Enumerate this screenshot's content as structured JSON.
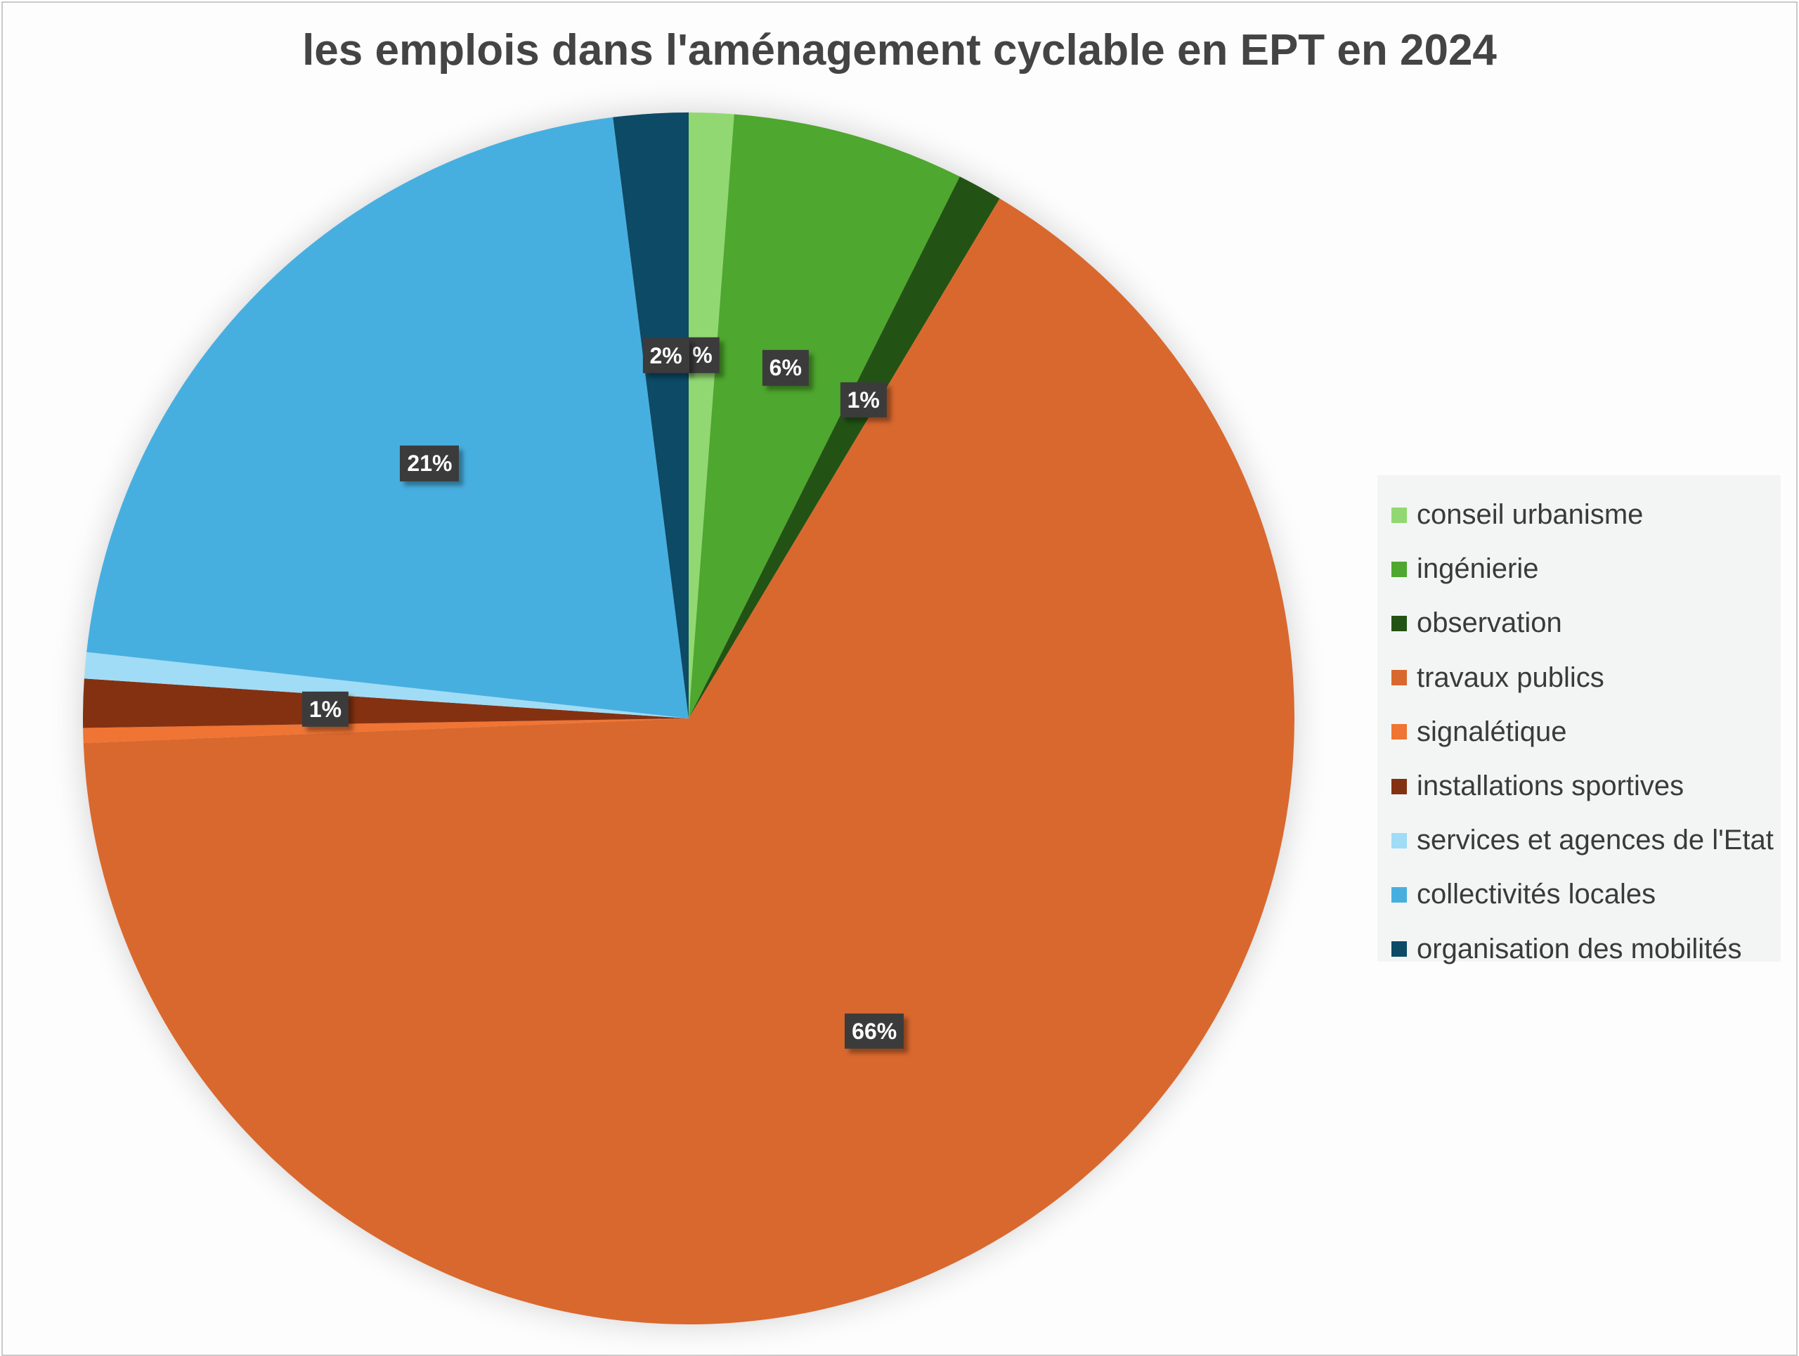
{
  "chart_data": {
    "type": "pie",
    "title": "les emplois dans l'aménagement cyclable en EPT en 2024",
    "legend_position": "right",
    "slices": [
      {
        "name": "conseil urbanisme",
        "value": 1.2,
        "label": "%",
        "color": "#92d872"
      },
      {
        "name": "ingénierie",
        "value": 6.2,
        "label": "6%",
        "color": "#4ea72e"
      },
      {
        "name": "observation",
        "value": 1.2,
        "label": "1%",
        "color": "#235314"
      },
      {
        "name": "travaux publics",
        "value": 65.9,
        "label": "66%",
        "color": "#d9682e"
      },
      {
        "name": "signalétique",
        "value": 0.4,
        "label": "",
        "color": "#f07433"
      },
      {
        "name": "installations sportives",
        "value": 1.3,
        "label": "1%",
        "color": "#843111"
      },
      {
        "name": "services et agences de l'Etat",
        "value": 0.7,
        "label": "",
        "color": "#a0dcf6"
      },
      {
        "name": "collectivités locales",
        "value": 21.3,
        "label": "21%",
        "color": "#47afe0"
      },
      {
        "name": "organisation des mobilités",
        "value": 2.0,
        "label": "2%",
        "color": "#0d4a66"
      }
    ]
  }
}
